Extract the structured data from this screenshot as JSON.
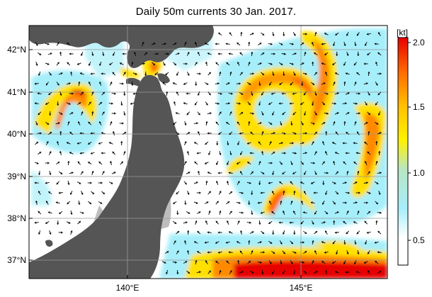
{
  "title": "Daily 50m currents 30 Jan. 2017.",
  "lat_labels": [
    "42°N",
    "41°N",
    "40°N",
    "39°N",
    "38°N",
    "37°N"
  ],
  "lon_labels": [
    "140°E",
    "145°E"
  ],
  "colorbar": {
    "unit": "[kt]",
    "ticks": [
      "2.0",
      "1.5",
      "1.0",
      "0.5"
    ],
    "colors": [
      "#ffffff",
      "#a6eefa",
      "#b8e6c4",
      "#fff200",
      "#ffc000",
      "#ff6a00",
      "#e60000"
    ]
  },
  "land_color": "#555555",
  "grid_color": "#9a9a9a"
}
